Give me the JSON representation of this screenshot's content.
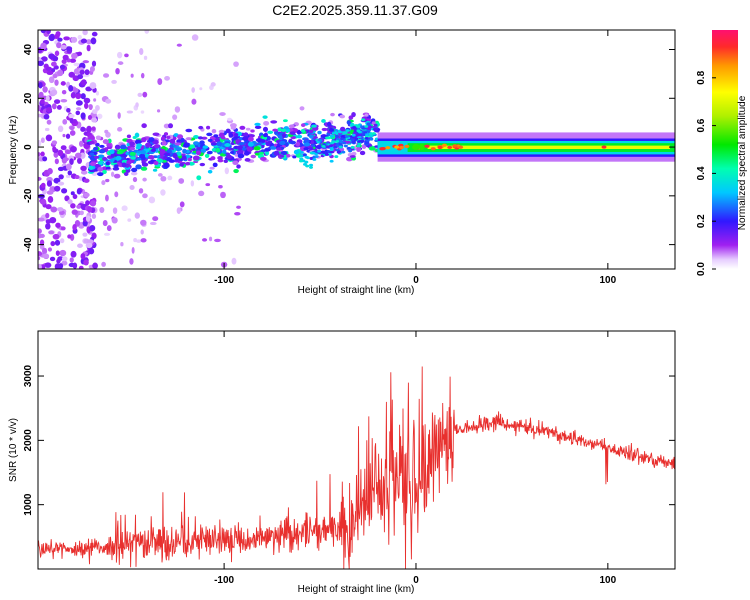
{
  "title": "C2E2.2025.359.11.37.G09",
  "chart_data": [
    {
      "type": "heatmap",
      "name": "spectrogram",
      "xlabel": "Height of straight line (km)",
      "ylabel": "Frequency (Hz)",
      "xlim": [
        -197,
        135
      ],
      "ylim": [
        -50,
        48
      ],
      "xticks": [
        -100,
        0,
        100
      ],
      "yticks": [
        -40,
        -20,
        0,
        20,
        40
      ],
      "colorbar": {
        "label": "Normalized spectral amplitude",
        "range": [
          0,
          1
        ],
        "ticks": [
          0.0,
          0.2,
          0.4,
          0.6,
          0.8
        ]
      },
      "band_description": "Scattered low-amplitude noise below -20 km, rising band from about -170 km to -20 km (center frequency ~-5 Hz to ~+15 Hz), steady high-amplitude band near 0 Hz from -20 km to 135 km"
    },
    {
      "type": "line",
      "name": "snr",
      "xlabel": "Height of straight line (km)",
      "ylabel": "SNR (10 * v/v)",
      "xlim": [
        -197,
        135
      ],
      "ylim": [
        0,
        3700
      ],
      "xticks": [
        -100,
        0,
        100
      ],
      "yticks": [
        1000,
        2000,
        3000
      ],
      "color": "#e8302e",
      "envelope": {
        "x": [
          -197,
          -170,
          -140,
          -110,
          -80,
          -60,
          -40,
          -30,
          -20,
          -10,
          0,
          10,
          20,
          40,
          60,
          80,
          100,
          120,
          135
        ],
        "y": [
          300,
          350,
          380,
          420,
          500,
          550,
          650,
          1000,
          1400,
          1500,
          1650,
          1900,
          2150,
          2280,
          2200,
          2050,
          1880,
          1720,
          1630
        ]
      }
    }
  ]
}
